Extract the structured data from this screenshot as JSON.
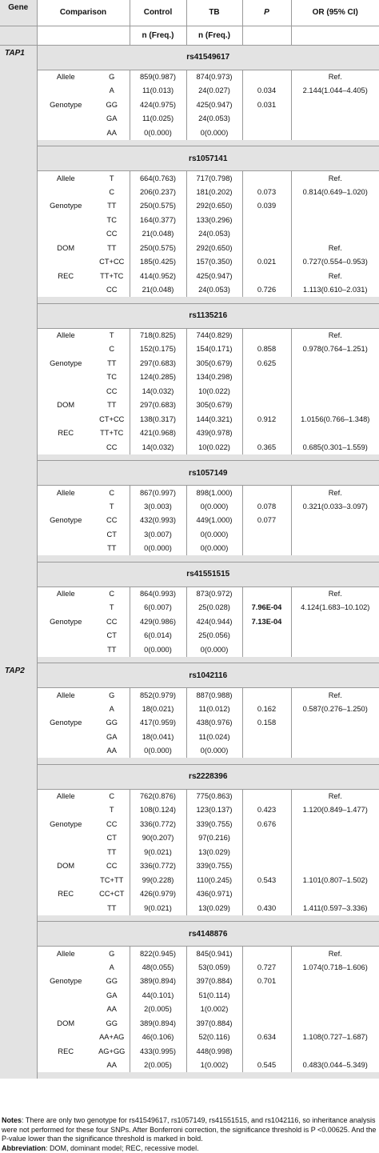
{
  "header": {
    "gene": "Gene",
    "comparison": "Comparison",
    "control": "Control",
    "tb": "TB",
    "p": "P",
    "or": "OR (95% CI)",
    "sub_control": "n (Freq.)",
    "sub_tb": "n (Freq.)"
  },
  "genes": [
    {
      "name": "TAP1",
      "snps": [
        {
          "id": "rs41549617",
          "rows": [
            [
              "Allele",
              "G",
              "859(0.987)",
              "874(0.973)",
              "",
              "Ref."
            ],
            [
              "",
              "A",
              "11(0.013)",
              "24(0.027)",
              "0.034",
              "2.144(1.044–4.405)"
            ],
            [
              "Genotype",
              "GG",
              "424(0.975)",
              "425(0.947)",
              "0.031",
              ""
            ],
            [
              "",
              "GA",
              "11(0.025)",
              "24(0.053)",
              "",
              ""
            ],
            [
              "",
              "AA",
              "0(0.000)",
              "0(0.000)",
              "",
              ""
            ]
          ]
        },
        {
          "id": "rs1057141",
          "rows": [
            [
              "Allele",
              "T",
              "664(0.763)",
              "717(0.798)",
              "",
              "Ref."
            ],
            [
              "",
              "C",
              "206(0.237)",
              "181(0.202)",
              "0.073",
              "0.814(0.649–1.020)"
            ],
            [
              "Genotype",
              "TT",
              "250(0.575)",
              "292(0.650)",
              "0.039",
              ""
            ],
            [
              "",
              "TC",
              "164(0.377)",
              "133(0.296)",
              "",
              ""
            ],
            [
              "",
              "CC",
              "21(0.048)",
              "24(0.053)",
              "",
              ""
            ],
            [
              "DOM",
              "TT",
              "250(0.575)",
              "292(0.650)",
              "",
              "Ref."
            ],
            [
              "",
              "CT+CC",
              "185(0.425)",
              "157(0.350)",
              "0.021",
              "0.727(0.554–0.953)"
            ],
            [
              "REC",
              "TT+TC",
              "414(0.952)",
              "425(0.947)",
              "",
              "Ref."
            ],
            [
              "",
              "CC",
              "21(0.048)",
              "24(0.053)",
              "0.726",
              "1.113(0.610–2.031)"
            ]
          ]
        },
        {
          "id": "rs1135216",
          "rows": [
            [
              "Allele",
              "T",
              "718(0.825)",
              "744(0.829)",
              "",
              "Ref."
            ],
            [
              "",
              "C",
              "152(0.175)",
              "154(0.171)",
              "0.858",
              "0.978(0.764–1.251)"
            ],
            [
              "Genotype",
              "TT",
              "297(0.683)",
              "305(0.679)",
              "0.625",
              ""
            ],
            [
              "",
              "TC",
              "124(0.285)",
              "134(0.298)",
              "",
              ""
            ],
            [
              "",
              "CC",
              "14(0.032)",
              "10(0.022)",
              "",
              ""
            ],
            [
              "DOM",
              "TT",
              "297(0.683)",
              "305(0.679)",
              "",
              ""
            ],
            [
              "",
              "CT+CC",
              "138(0.317)",
              "144(0.321)",
              "0.912",
              "1.0156(0.766–1.348)"
            ],
            [
              "REC",
              "TT+TC",
              "421(0.968)",
              "439(0.978)",
              "",
              ""
            ],
            [
              "",
              "CC",
              "14(0.032)",
              "10(0.022)",
              "0.365",
              "0.685(0.301–1.559)"
            ]
          ]
        },
        {
          "id": "rs1057149",
          "rows": [
            [
              "Allele",
              "C",
              "867(0.997)",
              "898(1.000)",
              "",
              "Ref."
            ],
            [
              "",
              "T",
              "3(0.003)",
              "0(0.000)",
              "0.078",
              "0.321(0.033–3.097)"
            ],
            [
              "Genotype",
              "CC",
              "432(0.993)",
              "449(1.000)",
              "0.077",
              ""
            ],
            [
              "",
              "CT",
              "3(0.007)",
              "0(0.000)",
              "",
              ""
            ],
            [
              "",
              "TT",
              "0(0.000)",
              "0(0.000)",
              "",
              ""
            ]
          ]
        },
        {
          "id": "rs41551515",
          "rows": [
            [
              "Allele",
              "C",
              "864(0.993)",
              "873(0.972)",
              "",
              "Ref."
            ],
            [
              "",
              "T",
              "6(0.007)",
              "25(0.028)",
              "7.96E-04",
              "4.124(1.683–10.102)"
            ],
            [
              "Genotype",
              "CC",
              "429(0.986)",
              "424(0.944)",
              "7.13E-04",
              ""
            ],
            [
              "",
              "CT",
              "6(0.014)",
              "25(0.056)",
              "",
              ""
            ],
            [
              "",
              "TT",
              "0(0.000)",
              "0(0.000)",
              "",
              ""
            ]
          ]
        }
      ]
    },
    {
      "name": "TAP2",
      "snps": [
        {
          "id": "rs1042116",
          "rows": [
            [
              "Allele",
              "G",
              "852(0.979)",
              "887(0.988)",
              "",
              "Ref."
            ],
            [
              "",
              "A",
              "18(0.021)",
              "11(0.012)",
              "0.162",
              "0.587(0.276–1.250)"
            ],
            [
              "Genotype",
              "GG",
              "417(0.959)",
              "438(0.976)",
              "0.158",
              ""
            ],
            [
              "",
              "GA",
              "18(0.041)",
              "11(0.024)",
              "",
              ""
            ],
            [
              "",
              "AA",
              "0(0.000)",
              "0(0.000)",
              "",
              ""
            ]
          ]
        },
        {
          "id": "rs2228396",
          "rows": [
            [
              "Allele",
              "C",
              "762(0.876)",
              "775(0.863)",
              "",
              "Ref."
            ],
            [
              "",
              "T",
              "108(0.124)",
              "123(0.137)",
              "0.423",
              "1.120(0.849–1.477)"
            ],
            [
              "Genotype",
              "CC",
              "336(0.772)",
              "339(0.755)",
              "0.676",
              ""
            ],
            [
              "",
              "CT",
              "90(0.207)",
              "97(0.216)",
              "",
              ""
            ],
            [
              "",
              "TT",
              "9(0.021)",
              "13(0.029)",
              "",
              ""
            ],
            [
              "DOM",
              "CC",
              "336(0.772)",
              "339(0.755)",
              "",
              ""
            ],
            [
              "",
              "TC+TT",
              "99(0.228)",
              "110(0.245)",
              "0.543",
              "1.101(0.807–1.502)"
            ],
            [
              "REC",
              "CC+CT",
              "426(0.979)",
              "436(0.971)",
              "",
              ""
            ],
            [
              "",
              "TT",
              "9(0.021)",
              "13(0.029)",
              "0.430",
              "1.411(0.597–3.336)"
            ]
          ]
        },
        {
          "id": "rs4148876",
          "rows": [
            [
              "Allele",
              "G",
              "822(0.945)",
              "845(0.941)",
              "",
              "Ref."
            ],
            [
              "",
              "A",
              "48(0.055)",
              "53(0.059)",
              "0.727",
              "1.074(0.718–1.606)"
            ],
            [
              "Genotype",
              "GG",
              "389(0.894)",
              "397(0.884)",
              "0.701",
              ""
            ],
            [
              "",
              "GA",
              "44(0.101)",
              "51(0.114)",
              "",
              ""
            ],
            [
              "",
              "AA",
              "2(0.005)",
              "1(0.002)",
              "",
              ""
            ],
            [
              "DOM",
              "GG",
              "389(0.894)",
              "397(0.884)",
              "",
              ""
            ],
            [
              "",
              "AA+AG",
              "46(0.106)",
              "52(0.116)",
              "0.634",
              "1.108(0.727–1.687)"
            ],
            [
              "REC",
              "AG+GG",
              "433(0.995)",
              "448(0.998)",
              "",
              ""
            ],
            [
              "",
              "AA",
              "2(0.005)",
              "1(0.002)",
              "0.545",
              "0.483(0.044–5.349)"
            ]
          ]
        }
      ]
    }
  ],
  "bold_p_values": [
    "7.96E-04",
    "7.13E-04"
  ],
  "notes": {
    "notes_label": "Notes",
    "notes_text": ": There are only two genotype for rs41549617, rs1057149, rs41551515, and rs1042116, so inheritance analysis were not performed for these four SNPs. After Bonferroni correction, the significance threshold is P <0.00625. And the P-value lower than the significance threshold is marked in bold.",
    "abbrev_label": "Abbreviation",
    "abbrev_text": ": DOM, dominant model; REC, recessive model."
  }
}
